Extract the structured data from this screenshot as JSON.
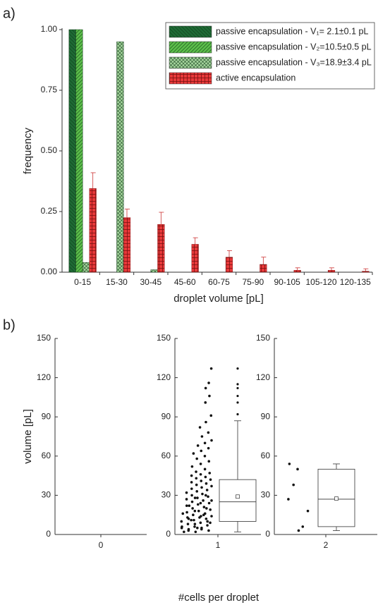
{
  "chart_data": [
    {
      "type": "bar",
      "label": "a)",
      "y_label": "frequency",
      "x_label": "droplet volume [pL]",
      "categories": [
        "0-15",
        "15-30",
        "30-45",
        "45-60",
        "60-75",
        "75-90",
        "90-105",
        "105-120",
        "120-135"
      ],
      "series": [
        {
          "name": "passive encapsulation - V₁=  2.1±0.1 pL",
          "color": "#1e6b35",
          "hatch": "diagonal-left",
          "values": [
            1.0,
            0,
            0,
            0,
            0,
            0,
            0,
            0,
            0
          ]
        },
        {
          "name": "passive encapsulation - V₂=10.5±0.5 pL",
          "color": "#5cbf4a",
          "hatch": "diagonal-right",
          "values": [
            1.0,
            0,
            0,
            0,
            0,
            0,
            0,
            0,
            0
          ]
        },
        {
          "name": "passive encapsulation - V₃=18.9±3.4 pL",
          "color": "#a9d9a0",
          "hatch": "crosshatch",
          "values": [
            0.04,
            0.95,
            0.01,
            0,
            0,
            0,
            0,
            0,
            0
          ]
        },
        {
          "name": "active encapsulation",
          "color": "#e8393a",
          "hatch": "grid",
          "values": [
            0.345,
            0.225,
            0.197,
            0.115,
            0.062,
            0.032,
            0.008,
            0.008,
            0.004
          ],
          "errors": [
            0.065,
            0.035,
            0.05,
            0.027,
            0.027,
            0.03,
            0.01,
            0.01,
            0.01
          ]
        }
      ],
      "ylim": [
        0,
        1.0
      ],
      "yticks": [
        {
          "value": 0,
          "label": "0.00"
        },
        {
          "value": 0.25,
          "label": "0.25"
        },
        {
          "value": 0.5,
          "label": "0.50"
        },
        {
          "value": 0.75,
          "label": "0.75"
        },
        {
          "value": 1.0,
          "label": "1.00"
        }
      ],
      "legend": "top-right"
    },
    {
      "type": "box",
      "label": "b)",
      "y_label": "volume [pL]",
      "x_label": "#cells per droplet",
      "categories": [
        "0",
        "1",
        "2"
      ],
      "ylim": [
        0,
        150
      ],
      "yticks": [
        0,
        30,
        60,
        90,
        120,
        150
      ],
      "points": [
        [],
        [
          2,
          3,
          4,
          5,
          5,
          6,
          7,
          8,
          9,
          10,
          11,
          12,
          13,
          13,
          14,
          15,
          16,
          17,
          18,
          19,
          20,
          21,
          22,
          23,
          24,
          25,
          26,
          27,
          28,
          29,
          30,
          31,
          32,
          33,
          34,
          35,
          36,
          37,
          38,
          39,
          40,
          41,
          42,
          43,
          44,
          45,
          46,
          47,
          48,
          50,
          52,
          54,
          56,
          58,
          60,
          62,
          64,
          66,
          68,
          70,
          72,
          75,
          78,
          82,
          86,
          91,
          101,
          106,
          112,
          116,
          127,
          3,
          4,
          6,
          8,
          10,
          12,
          14,
          16,
          18,
          20,
          22,
          24,
          26,
          28,
          30,
          2,
          5,
          9,
          11,
          15
        ],
        [
          50,
          27,
          6,
          38,
          18,
          3,
          54
        ]
      ],
      "boxes": [
        null,
        {
          "whislo": 2,
          "q1": 10,
          "med": 25,
          "q3": 42,
          "whishi": 87,
          "mean": 29,
          "fliers": [
            92,
            101,
            106,
            112,
            115,
            127
          ]
        },
        {
          "whislo": 3,
          "q1": 6,
          "med": 27,
          "q3": 50,
          "whishi": 54,
          "mean": 27.5,
          "fliers": []
        }
      ]
    }
  ]
}
